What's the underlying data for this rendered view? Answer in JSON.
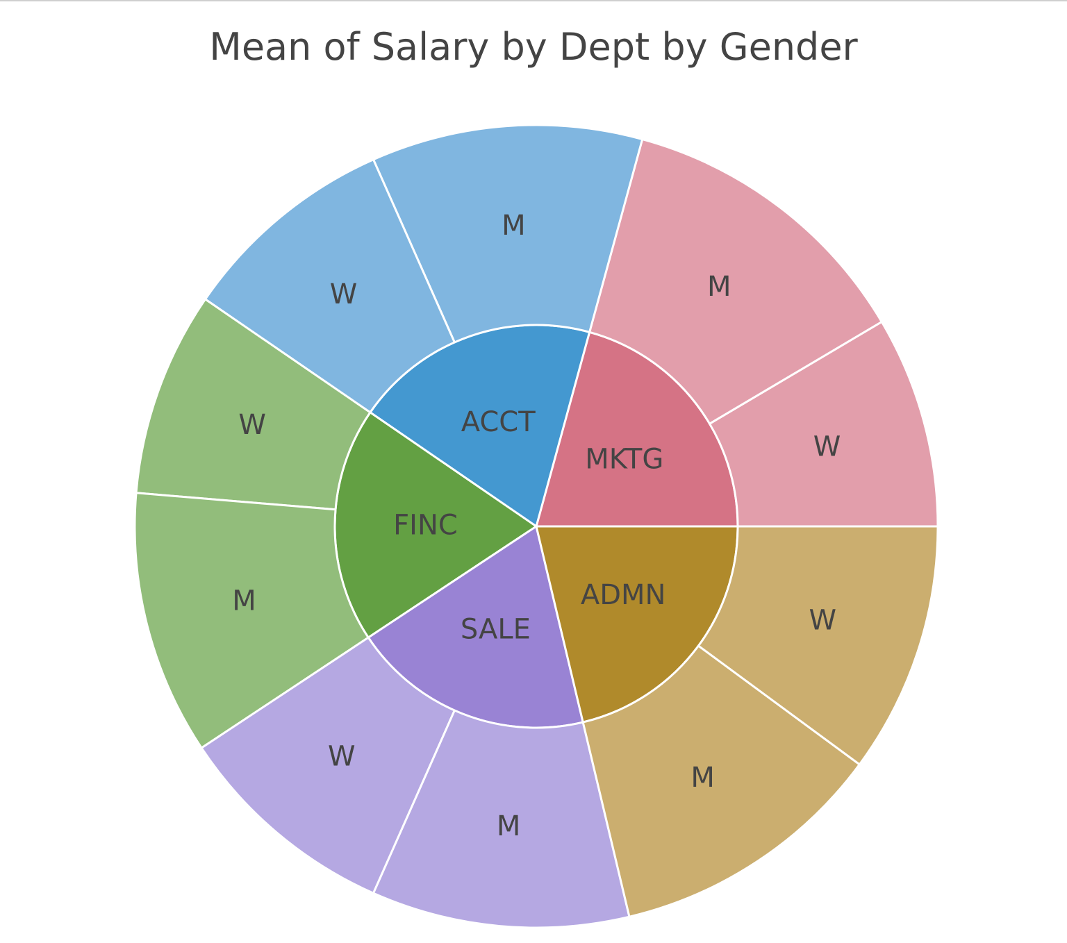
{
  "chart_data": {
    "type": "sunburst",
    "title": "Mean of Salary by Dept by Gender",
    "levels": [
      "Dept",
      "Gender"
    ],
    "departments": [
      {
        "name": "MKTG",
        "value": 78,
        "color": "#d57385",
        "children": [
          {
            "name": "W",
            "value": 32,
            "color": "#e29eab"
          },
          {
            "name": "M",
            "value": 46,
            "color": "#e29eab"
          }
        ]
      },
      {
        "name": "ACCT",
        "value": 74,
        "color": "#4498d0",
        "children": [
          {
            "name": "M",
            "value": 41,
            "color": "#80b6e0"
          },
          {
            "name": "W",
            "value": 33,
            "color": "#80b6e0"
          }
        ]
      },
      {
        "name": "FINC",
        "value": 71,
        "color": "#63a043",
        "children": [
          {
            "name": "W",
            "value": 31,
            "color": "#92bd7b"
          },
          {
            "name": "M",
            "value": 40,
            "color": "#92bd7b"
          }
        ]
      },
      {
        "name": "SALE",
        "value": 73,
        "color": "#9983d4",
        "children": [
          {
            "name": "W",
            "value": 34,
            "color": "#b5a8e2"
          },
          {
            "name": "M",
            "value": 39,
            "color": "#b5a8e2"
          }
        ]
      },
      {
        "name": "ADMN",
        "value": 80,
        "color": "#b08a2b",
        "children": [
          {
            "name": "M",
            "value": 42,
            "color": "#cbae6f"
          },
          {
            "name": "W",
            "value": 38,
            "color": "#cbae6f"
          }
        ]
      }
    ]
  }
}
